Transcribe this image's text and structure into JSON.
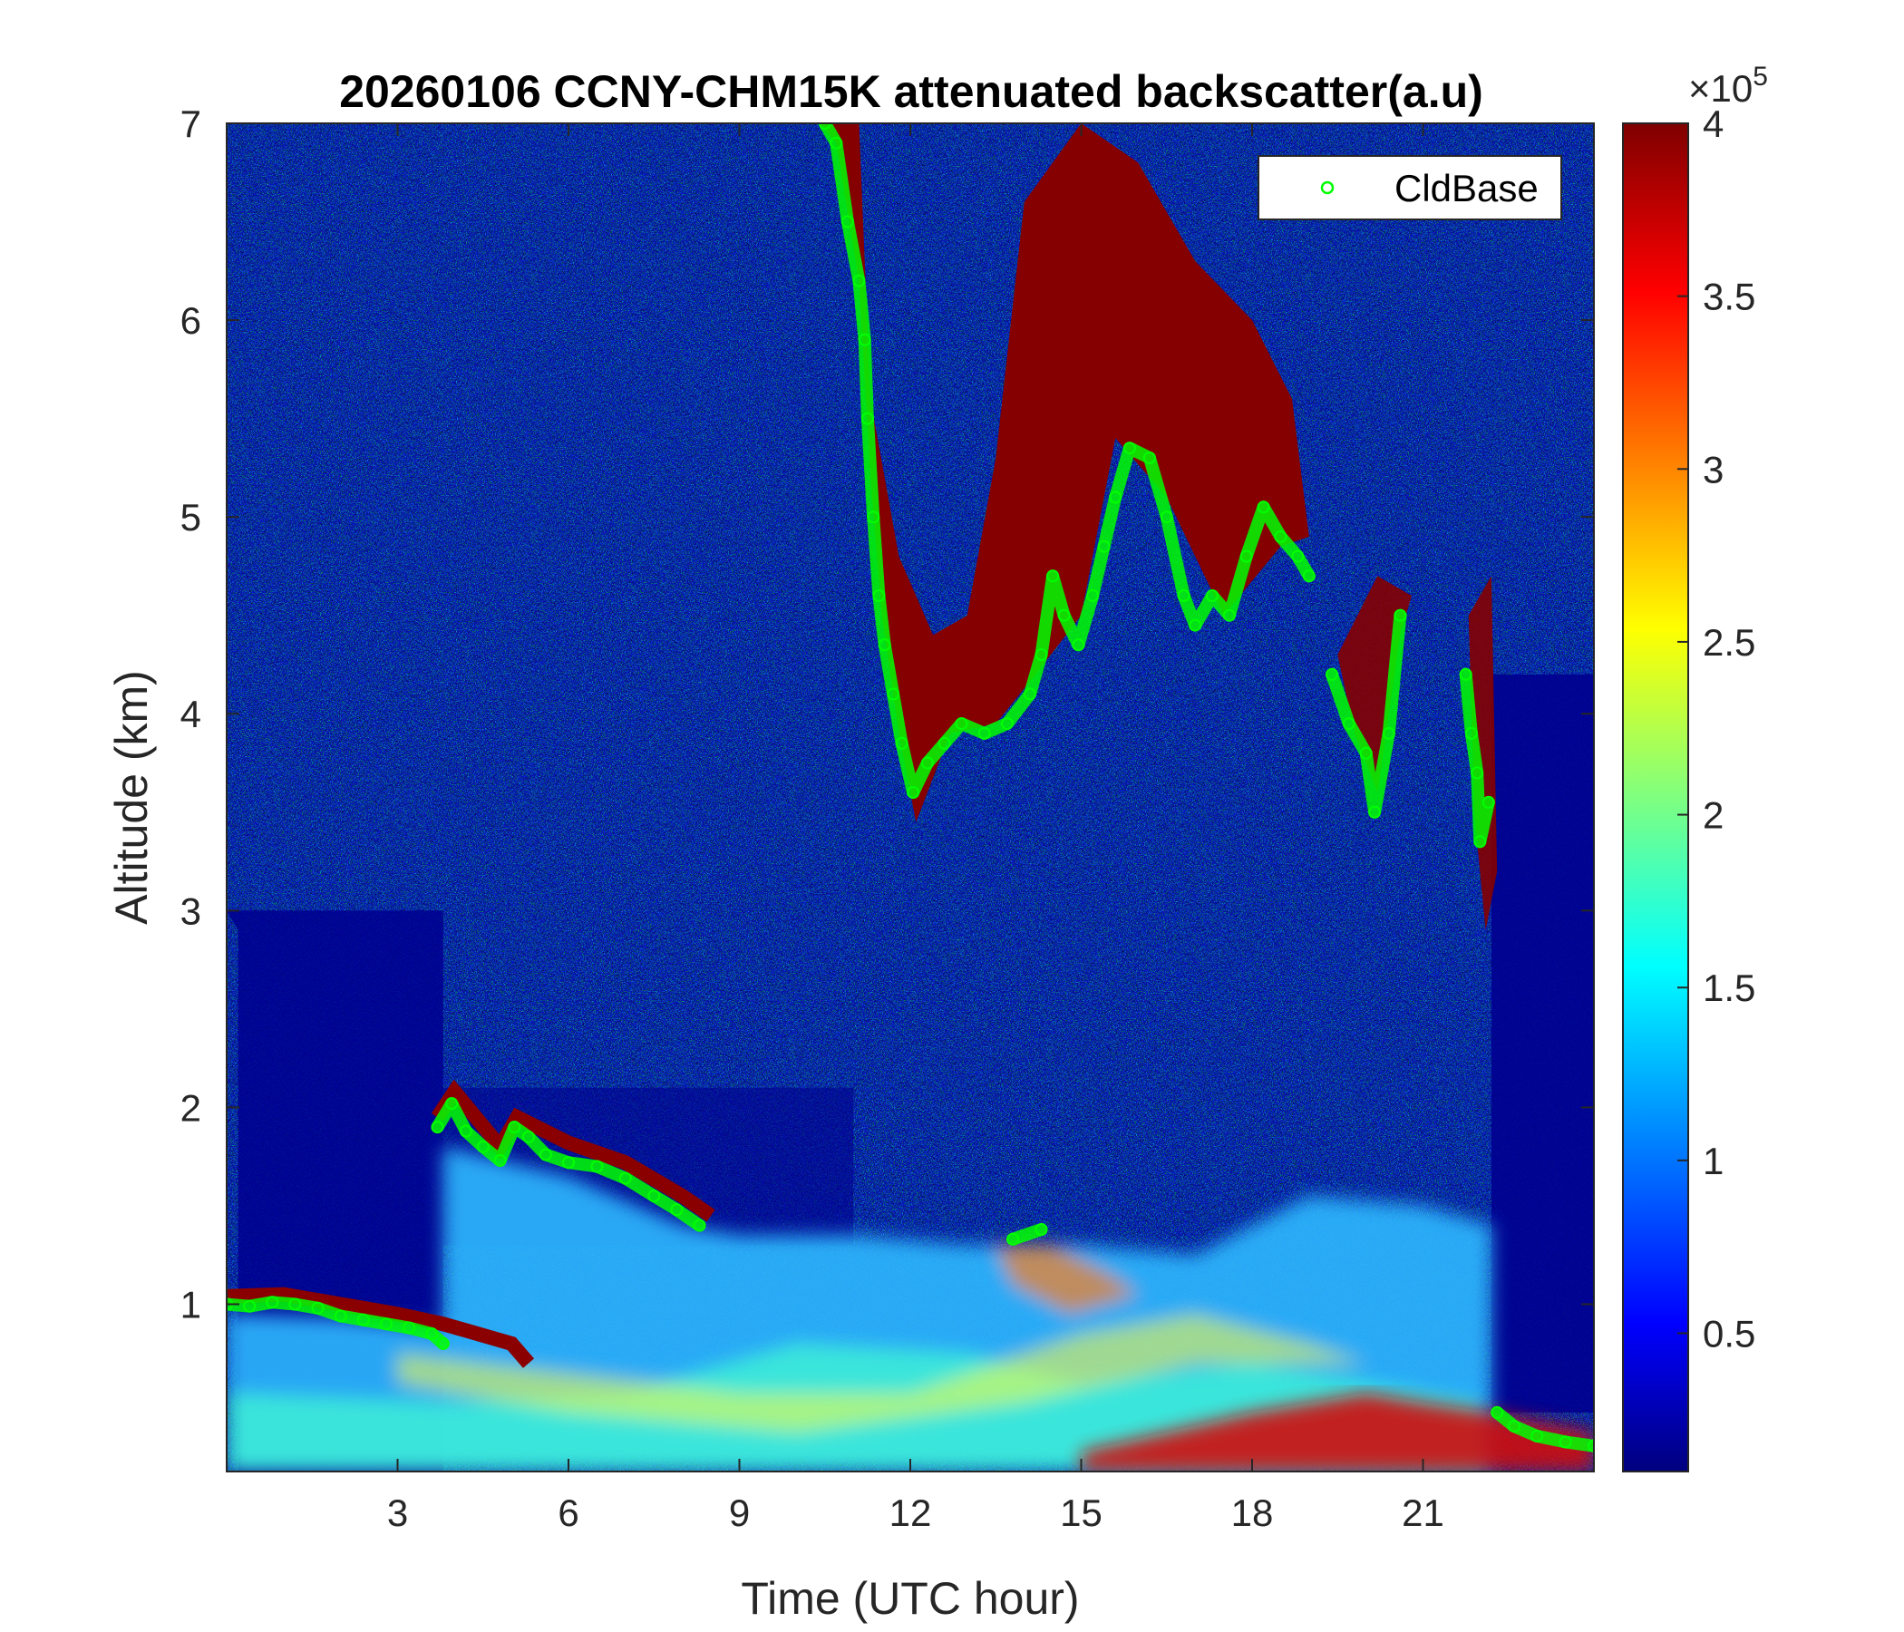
{
  "chart_data": {
    "type": "heatmap",
    "title": "20260106 CCNY-CHM15K attenuated backscatter(a.u)",
    "xlabel": "Time (UTC hour)",
    "ylabel": "Altitude (km)",
    "xlim": [
      0,
      24
    ],
    "ylim": [
      0.15,
      7
    ],
    "xticks": [
      3,
      6,
      9,
      12,
      15,
      18,
      21
    ],
    "yticks": [
      1,
      2,
      3,
      4,
      5,
      6,
      7
    ],
    "colormap": "jet",
    "colorbar": {
      "clim": [
        0.1,
        4
      ],
      "ticks": [
        0.5,
        1,
        1.5,
        2,
        2.5,
        3,
        3.5,
        4
      ],
      "multiplier_base": "×10",
      "multiplier_exponent": "5"
    },
    "grid": false,
    "legend_position": "top-right",
    "series": [
      {
        "name": "CldBase",
        "marker": "circle",
        "color": "#00ff00",
        "segments": [
          [
            [
              0.0,
              1.0
            ],
            [
              0.4,
              0.99
            ],
            [
              0.8,
              1.01
            ],
            [
              1.2,
              1.0
            ],
            [
              1.6,
              0.98
            ],
            [
              2.0,
              0.94
            ],
            [
              2.4,
              0.92
            ],
            [
              2.8,
              0.9
            ],
            [
              3.2,
              0.88
            ],
            [
              3.6,
              0.85
            ],
            [
              3.8,
              0.8
            ]
          ],
          [
            [
              3.7,
              1.9
            ],
            [
              3.95,
              2.02
            ],
            [
              4.2,
              1.88
            ],
            [
              4.5,
              1.8
            ],
            [
              4.8,
              1.73
            ],
            [
              5.05,
              1.9
            ],
            [
              5.3,
              1.85
            ],
            [
              5.6,
              1.76
            ],
            [
              6.0,
              1.72
            ],
            [
              6.5,
              1.7
            ],
            [
              7.0,
              1.64
            ],
            [
              7.5,
              1.55
            ],
            [
              7.9,
              1.48
            ],
            [
              8.3,
              1.4
            ]
          ],
          [
            [
              10.5,
              7.0
            ],
            [
              10.7,
              6.9
            ],
            [
              10.9,
              6.5
            ],
            [
              11.1,
              6.2
            ],
            [
              11.2,
              5.9
            ],
            [
              11.25,
              5.5
            ],
            [
              11.35,
              5.0
            ],
            [
              11.45,
              4.6
            ],
            [
              11.55,
              4.35
            ],
            [
              11.7,
              4.1
            ],
            [
              11.85,
              3.85
            ],
            [
              12.05,
              3.6
            ],
            [
              12.3,
              3.75
            ],
            [
              12.6,
              3.85
            ],
            [
              12.9,
              3.95
            ],
            [
              13.3,
              3.9
            ],
            [
              13.7,
              3.95
            ],
            [
              14.1,
              4.1
            ],
            [
              14.3,
              4.3
            ],
            [
              14.5,
              4.7
            ],
            [
              14.7,
              4.5
            ],
            [
              14.95,
              4.35
            ],
            [
              15.2,
              4.6
            ],
            [
              15.4,
              4.85
            ],
            [
              15.6,
              5.1
            ],
            [
              15.85,
              5.35
            ],
            [
              16.2,
              5.3
            ],
            [
              16.5,
              5.0
            ],
            [
              16.8,
              4.6
            ],
            [
              17.0,
              4.45
            ],
            [
              17.3,
              4.6
            ],
            [
              17.6,
              4.5
            ],
            [
              17.9,
              4.8
            ],
            [
              18.2,
              5.05
            ],
            [
              18.5,
              4.9
            ],
            [
              18.8,
              4.8
            ],
            [
              19.0,
              4.7
            ]
          ],
          [
            [
              19.4,
              4.2
            ],
            [
              19.7,
              3.95
            ],
            [
              20.0,
              3.8
            ],
            [
              20.15,
              3.5
            ],
            [
              20.4,
              3.9
            ],
            [
              20.6,
              4.5
            ]
          ],
          [
            [
              21.75,
              4.2
            ],
            [
              21.85,
              3.9
            ],
            [
              21.95,
              3.7
            ],
            [
              22.0,
              3.35
            ],
            [
              22.15,
              3.55
            ]
          ],
          [
            [
              22.3,
              0.45
            ],
            [
              22.6,
              0.38
            ],
            [
              23.0,
              0.33
            ],
            [
              23.5,
              0.3
            ],
            [
              24.0,
              0.28
            ]
          ],
          [
            [
              13.8,
              1.33
            ],
            [
              14.3,
              1.38
            ]
          ]
        ]
      }
    ]
  }
}
